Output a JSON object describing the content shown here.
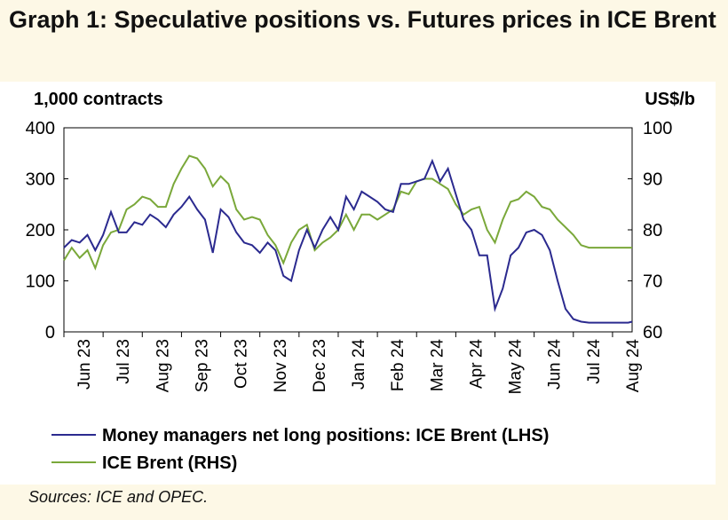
{
  "title": "Graph 1: Speculative positions vs. Futures prices in ICE Brent",
  "source": "Sources: ICE and OPEC.",
  "colors": {
    "money_managers": "#2b2a8f",
    "brent": "#7aa83a",
    "axis": "#000000"
  },
  "chart_data": {
    "type": "line",
    "title": "Graph 1: Speculative positions vs. Futures prices in ICE Brent",
    "left_axis_label": "1,000 contracts",
    "right_axis_label": "US$/b",
    "left_ylim": [
      0,
      400
    ],
    "right_ylim": [
      60,
      100
    ],
    "left_ticks": [
      "400",
      "300",
      "200",
      "100",
      "0"
    ],
    "right_ticks": [
      "100",
      "90",
      "80",
      "70",
      "60"
    ],
    "x_range": [
      0,
      14.5
    ],
    "categories": [
      "Jun 23",
      "Jul 23",
      "Aug 23",
      "Sep 23",
      "Oct 23",
      "Nov 23",
      "Dec 23",
      "Jan 24",
      "Feb 24",
      "Mar 24",
      "Apr 24",
      "May 24",
      "Jun 24",
      "Jul 24",
      "Aug 24"
    ],
    "grid": false,
    "series": [
      {
        "name": "Money managers net long positions: ICE Brent (LHS)",
        "axis": "left",
        "x": [
          0,
          0.2,
          0.4,
          0.6,
          0.8,
          1.0,
          1.2,
          1.4,
          1.6,
          1.8,
          2.0,
          2.2,
          2.4,
          2.6,
          2.8,
          3.0,
          3.2,
          3.4,
          3.6,
          3.8,
          4.0,
          4.2,
          4.4,
          4.6,
          4.8,
          5.0,
          5.2,
          5.4,
          5.6,
          5.8,
          6.0,
          6.2,
          6.4,
          6.6,
          6.8,
          7.0,
          7.2,
          7.4,
          7.6,
          7.8,
          8.0,
          8.2,
          8.4,
          8.6,
          8.8,
          9.0,
          9.2,
          9.4,
          9.6,
          9.8,
          10.0,
          10.2,
          10.4,
          10.6,
          10.8,
          11.0,
          11.2,
          11.4,
          11.6,
          11.8,
          12.0,
          12.2,
          12.4,
          12.6,
          12.8,
          13.0,
          13.2,
          13.4,
          13.6,
          13.8,
          14.0,
          14.2,
          14.4,
          14.5
        ],
        "values": [
          165,
          180,
          175,
          190,
          160,
          190,
          235,
          195,
          195,
          215,
          210,
          230,
          220,
          205,
          230,
          245,
          265,
          240,
          220,
          155,
          240,
          225,
          195,
          175,
          170,
          155,
          175,
          160,
          110,
          100,
          160,
          200,
          165,
          200,
          225,
          200,
          265,
          240,
          275,
          265,
          255,
          240,
          235,
          290,
          290,
          295,
          300,
          335,
          295,
          320,
          270,
          220,
          200,
          150,
          150,
          45,
          85,
          150,
          165,
          195,
          200,
          190,
          160,
          100,
          45,
          25,
          20,
          18,
          18,
          18,
          18,
          18,
          18,
          20
        ]
      },
      {
        "name": "ICE Brent (RHS)",
        "axis": "right",
        "x": [
          0,
          0.2,
          0.4,
          0.6,
          0.8,
          1.0,
          1.2,
          1.4,
          1.6,
          1.8,
          2.0,
          2.2,
          2.4,
          2.6,
          2.8,
          3.0,
          3.2,
          3.4,
          3.6,
          3.8,
          4.0,
          4.2,
          4.4,
          4.6,
          4.8,
          5.0,
          5.2,
          5.4,
          5.6,
          5.8,
          6.0,
          6.2,
          6.4,
          6.6,
          6.8,
          7.0,
          7.2,
          7.4,
          7.6,
          7.8,
          8.0,
          8.2,
          8.4,
          8.6,
          8.8,
          9.0,
          9.2,
          9.4,
          9.6,
          9.8,
          10.0,
          10.2,
          10.4,
          10.6,
          10.8,
          11.0,
          11.2,
          11.4,
          11.6,
          11.8,
          12.0,
          12.2,
          12.4,
          12.6,
          12.8,
          13.0,
          13.2,
          13.4,
          13.6,
          13.8,
          14.0,
          14.2,
          14.4,
          14.5
        ],
        "values": [
          74.0,
          76.5,
          74.5,
          76.0,
          72.5,
          77.0,
          79.5,
          80.0,
          84.0,
          85.0,
          86.5,
          86.0,
          84.5,
          84.5,
          89.0,
          92.0,
          94.5,
          94.0,
          92.0,
          88.5,
          90.5,
          89.0,
          84.0,
          82.0,
          82.5,
          82.0,
          79.0,
          77.0,
          73.5,
          77.5,
          80.0,
          81.0,
          76.0,
          77.5,
          78.5,
          80.0,
          83.0,
          80.0,
          83.0,
          83.0,
          82.0,
          83.0,
          84.0,
          87.5,
          87.0,
          89.5,
          90.0,
          90.0,
          89.0,
          88.0,
          85.0,
          83.0,
          84.0,
          84.5,
          80.0,
          77.5,
          82.0,
          85.5,
          86.0,
          87.5,
          86.5,
          84.5,
          84.0,
          82.0,
          80.5,
          79.0,
          77.0,
          76.5,
          76.5,
          76.5,
          76.5,
          76.5,
          76.5,
          76.5
        ]
      }
    ]
  }
}
